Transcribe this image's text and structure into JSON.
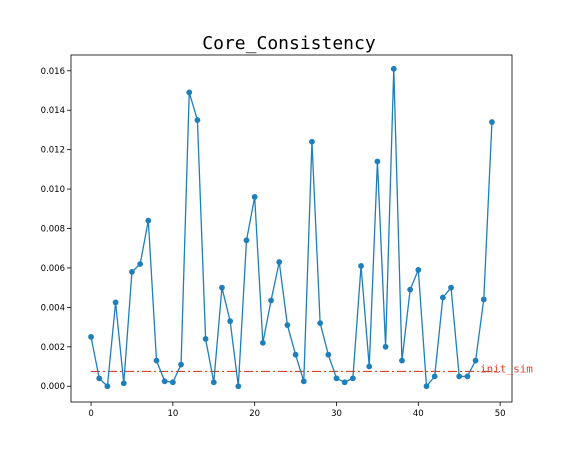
{
  "chart_data": {
    "type": "line",
    "title": "Core_Consistency",
    "xlabel": "",
    "ylabel": "",
    "xlim": [
      -2.45,
      51.45
    ],
    "ylim": [
      -0.0008,
      0.0168
    ],
    "xticks": [
      0,
      10,
      20,
      30,
      40,
      50
    ],
    "xtick_labels": [
      "0",
      "10",
      "20",
      "30",
      "40",
      "50"
    ],
    "yticks": [
      0.0,
      0.002,
      0.004,
      0.006,
      0.008,
      0.01,
      0.012,
      0.014,
      0.016
    ],
    "ytick_labels": [
      "0.000",
      "0.002",
      "0.004",
      "0.006",
      "0.008",
      "0.010",
      "0.012",
      "0.014",
      "0.016"
    ],
    "grid": false,
    "series": [
      {
        "color": "#1f7fb8",
        "marker": "circle",
        "x": [
          0,
          1,
          2,
          3,
          4,
          5,
          6,
          7,
          8,
          9,
          10,
          11,
          12,
          13,
          14,
          15,
          16,
          17,
          18,
          19,
          20,
          21,
          22,
          23,
          24,
          25,
          26,
          27,
          28,
          29,
          30,
          31,
          32,
          33,
          34,
          35,
          36,
          37,
          38,
          39,
          40,
          41,
          42,
          43,
          44,
          45,
          46,
          47,
          48,
          49
        ],
        "y": [
          0.0025,
          0.0004,
          0.0,
          0.00425,
          0.00015,
          0.0058,
          0.0062,
          0.0084,
          0.0013,
          0.00025,
          0.0002,
          0.0011,
          0.0149,
          0.0135,
          0.0024,
          0.0002,
          0.005,
          0.0033,
          0.0,
          0.0074,
          0.0096,
          0.0022,
          0.00435,
          0.0063,
          0.0031,
          0.0016,
          0.00025,
          0.0124,
          0.0032,
          0.0016,
          0.0004,
          0.0002,
          0.0004,
          0.0061,
          0.001,
          0.0114,
          0.002,
          0.0161,
          0.0013,
          0.0049,
          0.0059,
          0.0,
          0.0005,
          0.0045,
          0.005,
          0.0005,
          0.0005,
          0.0013,
          0.0044,
          0.0134
        ]
      }
    ],
    "reference_lines": [
      {
        "label": "init_sim",
        "y": 0.00075,
        "color": "#d9432b",
        "style": "dashdot"
      }
    ]
  }
}
